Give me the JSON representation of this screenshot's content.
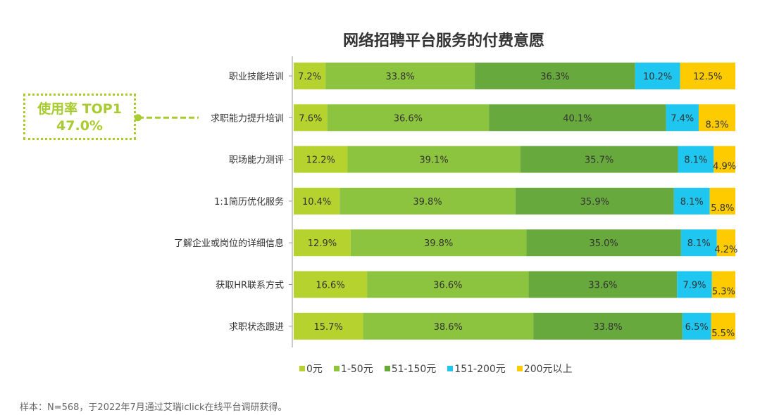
{
  "chart_data": {
    "type": "bar",
    "orientation": "horizontal",
    "stacked": true,
    "title": "网络招聘平台服务的付费意愿",
    "categories": [
      "职业技能培训",
      "求职能力提升培训",
      "职场能力测评",
      "1:1简历优化服务",
      "了解企业或岗位的详细信息",
      "获取HR联系方式",
      "求职状态跟进"
    ],
    "series": [
      {
        "name": "0元",
        "color": "#b5d22f",
        "values": [
          7.2,
          7.6,
          12.2,
          10.4,
          12.9,
          16.6,
          15.7
        ]
      },
      {
        "name": "1-50元",
        "color": "#8dc43f",
        "values": [
          33.8,
          36.6,
          39.1,
          39.8,
          39.8,
          36.6,
          38.6
        ]
      },
      {
        "name": "51-150元",
        "color": "#68a93e",
        "values": [
          36.3,
          40.1,
          35.7,
          35.9,
          35.0,
          33.6,
          33.8
        ]
      },
      {
        "name": "151-200元",
        "color": "#1fc6ef",
        "values": [
          10.2,
          7.4,
          8.1,
          8.1,
          8.1,
          7.9,
          6.5
        ]
      },
      {
        "name": "200元以上",
        "color": "#fecb00",
        "values": [
          12.5,
          8.3,
          4.9,
          5.8,
          4.2,
          5.3,
          5.5
        ]
      }
    ],
    "legend": "bottom",
    "grid": false
  },
  "callout": {
    "line1": "使用率 TOP1",
    "line2": "47.0%",
    "target": "求职能力提升培训",
    "color": "#a8cc2e"
  },
  "note": "样本：N=568，于2022年7月通过艾瑞iclick在线平台调研获得。"
}
